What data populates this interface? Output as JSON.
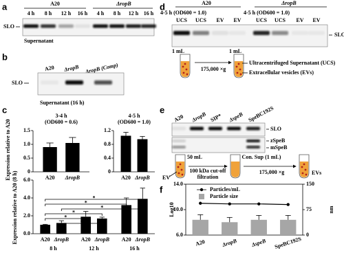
{
  "figure": {
    "a": {
      "label": "a",
      "groups": [
        "A20",
        "ΔropB"
      ],
      "lanes": [
        "4 h",
        "8 h",
        "12 h",
        "16 h",
        "4 h",
        "8 h",
        "12 h",
        "16 h"
      ],
      "band": "SLO",
      "caption": "Supernatant"
    },
    "b": {
      "label": "b",
      "lanes": [
        "A20",
        "ΔropB",
        "ΔropB (Comp)"
      ],
      "band": "SLO",
      "caption": "Supernatant (16 h)"
    },
    "c": {
      "label": "c"
    },
    "d": {
      "label": "d",
      "groups": [
        "A20",
        "ΔropB"
      ],
      "conditions": [
        "4-5 h (OD600 = 1.0)",
        "4-5 h (OD600 = 1.0)"
      ],
      "lanes": [
        "UCS",
        "UCS",
        "EV",
        "EV",
        "UCS",
        "UCS",
        "EV",
        "EV"
      ],
      "band": "SLO",
      "volume_in": "1 mL",
      "volume_out": "1 mL",
      "speed": "175,000 ×g",
      "ucs": "Ultracentrifuged Supernatant (UCS)",
      "ev": "Extracellular vesicles (EVs)"
    },
    "e": {
      "label": "e",
      "lanes": [
        "A20",
        "ΔropB",
        "SIP*",
        "ΔspeB",
        "SpeBC192S"
      ],
      "bands": [
        "SLO",
        "zSpeB",
        "mSpeB"
      ],
      "volume": "50 mL",
      "ev": "EV",
      "filter": [
        "100 kDa cut-off",
        "filtration"
      ],
      "consup": "Con. Sup (1 mL)",
      "speed": "175,000 ×g",
      "evs": "EVs"
    },
    "f": {
      "label": "f"
    }
  },
  "chart_data": [
    {
      "type": "bar",
      "title": "3-4 h",
      "subtitle": "(OD600 = 0.6)",
      "ylabel": "Expression relative to A20",
      "categories": [
        "A20",
        "ΔropB"
      ],
      "values": [
        0.9,
        1.05
      ],
      "errors": [
        0.15,
        0.2
      ],
      "color": "#000000",
      "ylim": [
        0,
        1.5
      ],
      "yticks": [
        0,
        0.5,
        {
          "value": 1,
          "label": "1.0"
        },
        1.5
      ]
    },
    {
      "type": "bar",
      "title": "4-5 h",
      "subtitle": "(OD600 = 1.0)",
      "categories": [
        "A20",
        "ΔropB"
      ],
      "values": [
        1.05,
        0.95
      ],
      "errors": [
        0.1,
        0.08
      ],
      "color": "#000000",
      "ylim": [
        0,
        1.2
      ],
      "yticks": [
        0,
        0.4,
        0.8,
        1.2
      ]
    },
    {
      "type": "bar",
      "ylabel": "Expression relative to A20 (8 h)",
      "groups": [
        "8 h",
        "12 h",
        "16 h"
      ],
      "categories": [
        "A20",
        "ΔropB",
        "A20",
        "ΔropB",
        "A20",
        "ΔropB"
      ],
      "values": [
        1.0,
        1.2,
        1.9,
        1.7,
        3.2,
        3.9
      ],
      "errors": [
        0.05,
        0.25,
        0.6,
        0.15,
        0.8,
        1.2
      ],
      "color": "#000000",
      "ylim": [
        0,
        6
      ],
      "yticks": [
        {
          "value": 0,
          "label": "0.0"
        },
        {
          "value": 2,
          "label": "2.0"
        },
        {
          "value": 4,
          "label": "4.0"
        },
        {
          "value": 6,
          "label": "6.0"
        }
      ],
      "annotations": [
        "*",
        "*",
        "*",
        "*",
        "*",
        "*"
      ]
    },
    {
      "type": "bar_line",
      "ylabel": "Log10",
      "y2label": "nm",
      "categories": [
        "A20",
        "ΔropB",
        "ΔspeB",
        "SpeBC192S"
      ],
      "series": [
        {
          "name": "Particles/mL",
          "type": "line",
          "color": "#000000",
          "values": [
            11.0,
            10.9,
            10.9,
            10.8
          ]
        },
        {
          "name": "Particle size",
          "type": "bar",
          "axis": "y2",
          "color": "#a6a6a6",
          "values": [
            45,
            38,
            45,
            45
          ],
          "errors": [
            15,
            14,
            13,
            13
          ]
        }
      ],
      "ylim": [
        6,
        14
      ],
      "yticks": [
        {
          "value": 6,
          "label": "6.0"
        },
        {
          "value": 10,
          "label": "10.0"
        },
        {
          "value": 14,
          "label": "14.0"
        }
      ],
      "y2lim": [
        0,
        150
      ],
      "y2ticks": [
        0,
        75,
        150
      ]
    }
  ]
}
